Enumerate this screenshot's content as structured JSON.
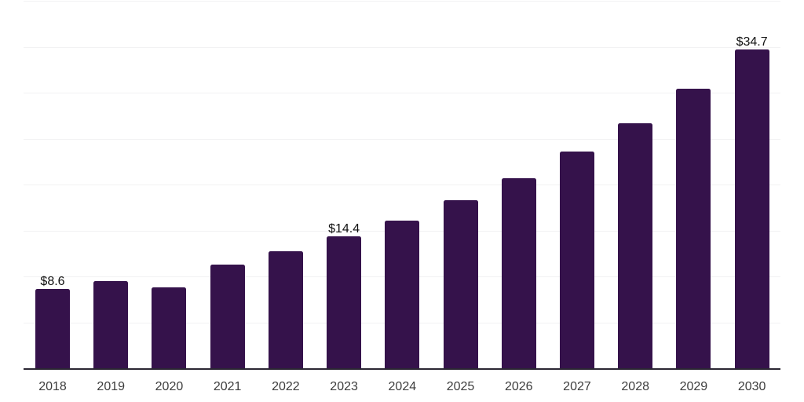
{
  "chart_data": {
    "type": "bar",
    "title": "",
    "xlabel": "",
    "ylabel": "",
    "categories": [
      "2018",
      "2019",
      "2020",
      "2021",
      "2022",
      "2023",
      "2024",
      "2025",
      "2026",
      "2027",
      "2028",
      "2029",
      "2030"
    ],
    "values": [
      8.6,
      9.5,
      8.8,
      11.3,
      12.7,
      14.4,
      16.1,
      18.3,
      20.7,
      23.6,
      26.7,
      30.4,
      34.7
    ],
    "value_labels": {
      "2018": "$8.6",
      "2023": "$14.4",
      "2030": "$34.7"
    },
    "ylim": [
      0,
      40
    ],
    "gridline_step": 5,
    "grid": "horizontal-only",
    "y_axis_tick_labels_visible": false,
    "legend_position": "none",
    "colors": {
      "background": "#FFFFFF",
      "bar": "#35124B",
      "axis_line": "#2B2733",
      "gridline": "#F2F2F3",
      "value_label_text": "#111111",
      "x_tick_text": "#3D3D3D"
    }
  }
}
